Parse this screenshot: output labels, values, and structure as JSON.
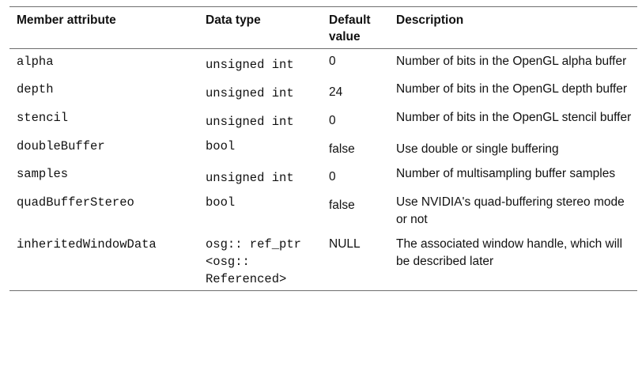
{
  "headers": {
    "attribute": "Member attribute",
    "type": "Data type",
    "default": "Default value",
    "description": "Description"
  },
  "rows": [
    {
      "attribute": "alpha",
      "type": "unsigned int",
      "default": "0",
      "description": "Number of bits in the OpenGL alpha buffer"
    },
    {
      "attribute": "depth",
      "type": "unsigned int",
      "default": "24",
      "description": "Number of bits in the OpenGL depth buffer"
    },
    {
      "attribute": "stencil",
      "type": "unsigned int",
      "default": "0",
      "description": "Number of bits in the OpenGL stencil buffer"
    },
    {
      "attribute": "doubleBuffer",
      "type": "bool",
      "default": "false",
      "description": "Use double or single buffering"
    },
    {
      "attribute": "samples",
      "type": "unsigned int",
      "default": "0",
      "description": "Number of multisampling buffer samples"
    },
    {
      "attribute": "quadBufferStereo",
      "type": "bool",
      "default": "false",
      "description": "Use NVIDIA's quad-buffering stereo mode or not"
    },
    {
      "attribute": "inheritedWindowData",
      "type": "osg:: ref_ptr <osg:: Referenced>",
      "default": "NULL",
      "description": "The associated window handle, which will be described later"
    }
  ]
}
